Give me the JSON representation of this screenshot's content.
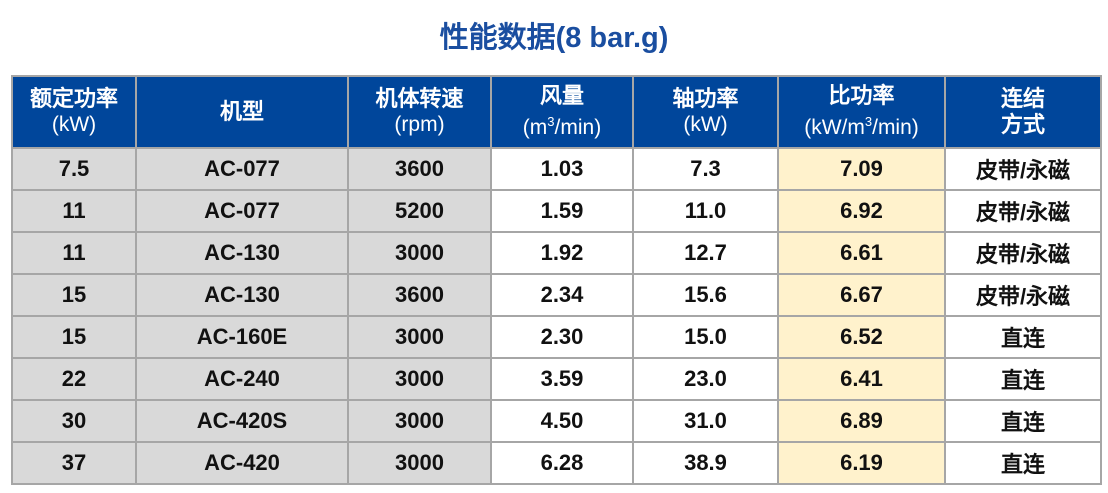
{
  "title": "性能数据(8 bar.g)",
  "colors": {
    "header_bg": "#00469b",
    "key_col_bg": "#d9d9d9",
    "highlight_col_bg": "#fff2cc",
    "border": "#a6a6a6",
    "title": "#1a4ea0"
  },
  "headers": [
    {
      "label": "额定功率",
      "unit": "(kW)"
    },
    {
      "label": "机型",
      "unit": ""
    },
    {
      "label": "机体转速",
      "unit": "(rpm)"
    },
    {
      "label": "风量",
      "unit_pre": "(m",
      "unit_sup": "3",
      "unit_post": "/min)"
    },
    {
      "label": "轴功率",
      "unit": "(kW)"
    },
    {
      "label": "比功率",
      "unit_pre": "(kW/m",
      "unit_sup": "3",
      "unit_post": "/min)"
    },
    {
      "label": "连结",
      "unit": "方式"
    }
  ],
  "rows": [
    [
      "7.5",
      "AC-077",
      "3600",
      "1.03",
      "7.3",
      "7.09",
      "皮带/永磁"
    ],
    [
      "11",
      "AC-077",
      "5200",
      "1.59",
      "11.0",
      "6.92",
      "皮带/永磁"
    ],
    [
      "11",
      "AC-130",
      "3000",
      "1.92",
      "12.7",
      "6.61",
      "皮带/永磁"
    ],
    [
      "15",
      "AC-130",
      "3600",
      "2.34",
      "15.6",
      "6.67",
      "皮带/永磁"
    ],
    [
      "15",
      "AC-160E",
      "3000",
      "2.30",
      "15.0",
      "6.52",
      "直连"
    ],
    [
      "22",
      "AC-240",
      "3000",
      "3.59",
      "23.0",
      "6.41",
      "直连"
    ],
    [
      "30",
      "AC-420S",
      "3000",
      "4.50",
      "31.0",
      "6.89",
      "直连"
    ],
    [
      "37",
      "AC-420",
      "3000",
      "6.28",
      "38.9",
      "6.19",
      "直连"
    ]
  ]
}
